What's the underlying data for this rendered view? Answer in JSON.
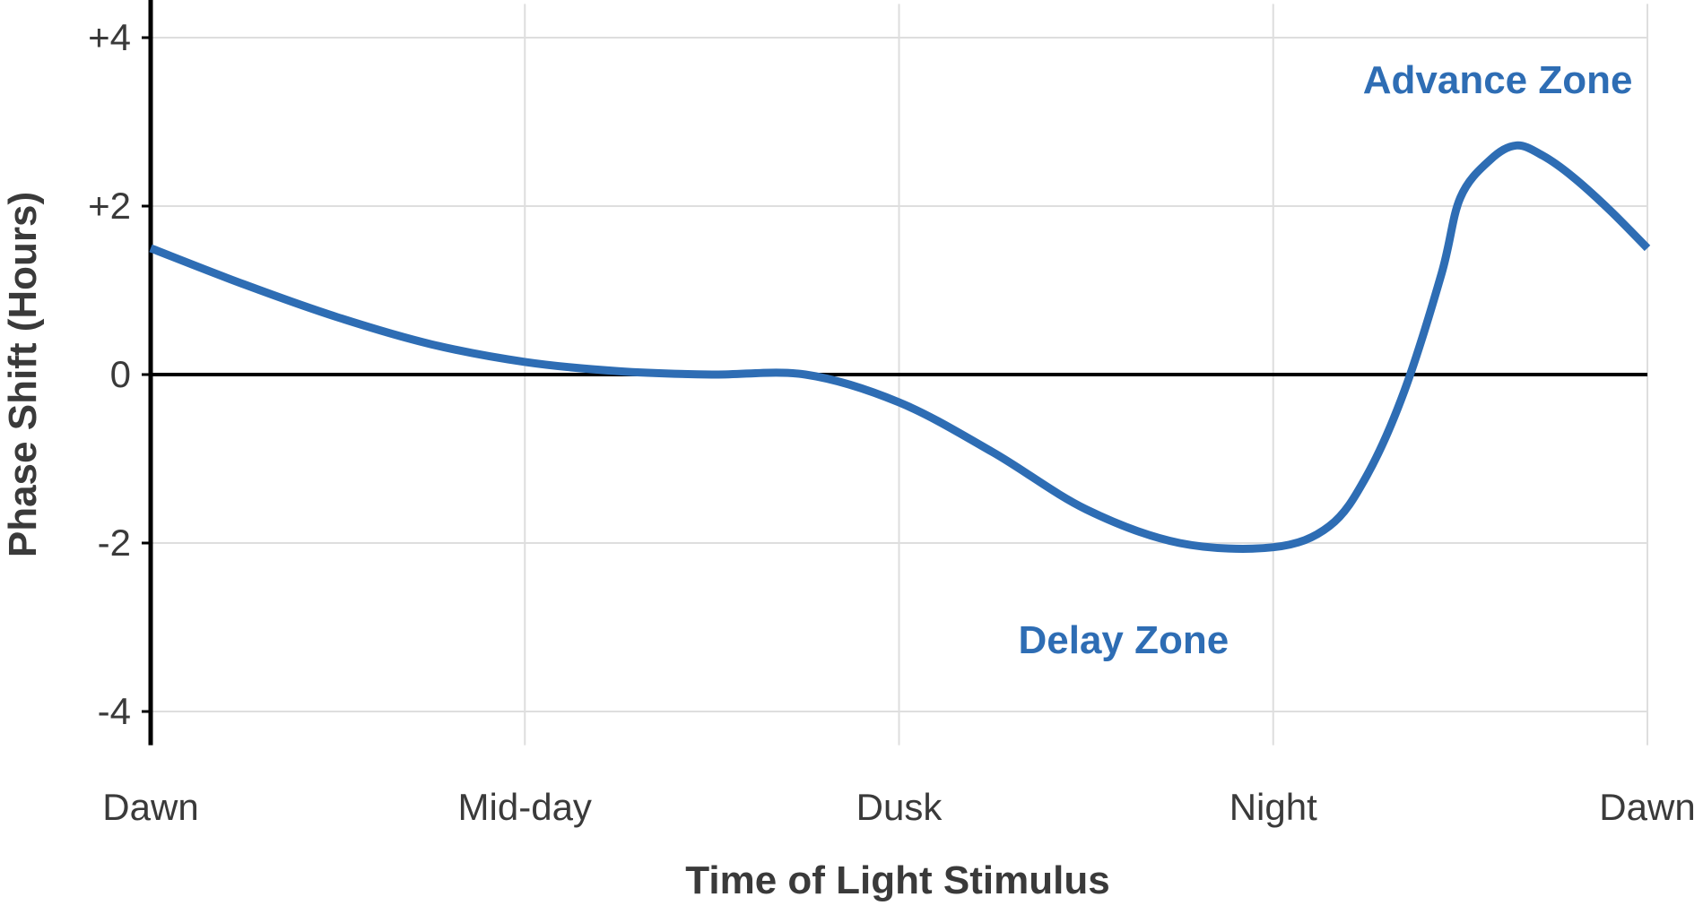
{
  "chart_data": {
    "type": "line",
    "title": "",
    "xlabel": "Time of Light Stimulus",
    "ylabel": "Phase Shift (Hours)",
    "categories": [
      "Dawn",
      "Mid-day",
      "Dusk",
      "Night",
      "Dawn"
    ],
    "y_ticks": [
      {
        "value": 4,
        "label": "+4"
      },
      {
        "value": 2,
        "label": "+2"
      },
      {
        "value": 0,
        "label": "0"
      },
      {
        "value": -2,
        "label": "-2"
      },
      {
        "value": -4,
        "label": "-4"
      }
    ],
    "ylim": [
      -4.4,
      4.4
    ],
    "xlim": [
      0,
      4
    ],
    "grid": true,
    "legend": "none",
    "color": "#2e6db4",
    "series": [
      {
        "x": [
          0,
          0.25,
          0.5,
          0.75,
          1.0,
          1.25,
          1.5,
          1.75,
          2.0,
          2.25,
          2.5,
          2.75,
          3.0,
          3.15,
          3.25,
          3.35,
          3.45,
          3.5,
          3.58,
          3.65,
          3.72,
          3.8,
          3.9,
          4.0
        ],
        "y": [
          1.5,
          1.07,
          0.68,
          0.36,
          0.15,
          0.04,
          0.0,
          0.0,
          -0.33,
          -0.92,
          -1.6,
          -2.0,
          -2.05,
          -1.8,
          -1.2,
          -0.2,
          1.2,
          2.1,
          2.55,
          2.72,
          2.6,
          2.35,
          1.95,
          1.5
        ]
      }
    ],
    "annotations": [
      {
        "text": "Advance Zone",
        "x": 3.6,
        "y": 3.5
      },
      {
        "text": "Delay Zone",
        "x": 2.6,
        "y": -3.15
      }
    ]
  }
}
